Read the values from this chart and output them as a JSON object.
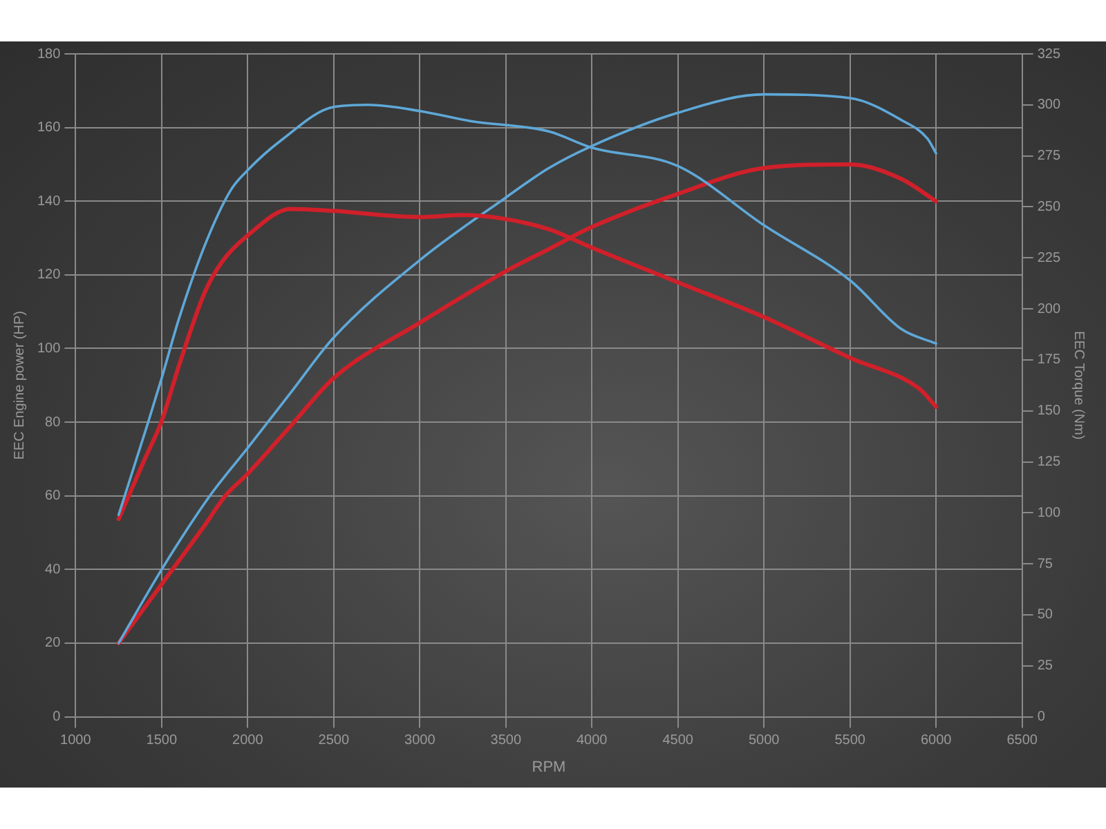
{
  "chart_data": {
    "type": "line",
    "xlabel": "RPM",
    "ylabel": "EEC Engine power (HP)",
    "y2label": "EEC Torque (Nm)",
    "xlim": [
      1000,
      6500
    ],
    "xticks": [
      1000,
      1500,
      2000,
      2500,
      3000,
      3500,
      4000,
      4500,
      5000,
      5500,
      6000,
      6500
    ],
    "ylim": [
      0,
      180
    ],
    "yticks": [
      0,
      20,
      40,
      60,
      80,
      100,
      120,
      140,
      160,
      180
    ],
    "y2lim": [
      0,
      325
    ],
    "y2ticks": [
      0,
      25,
      50,
      75,
      100,
      125,
      150,
      175,
      200,
      225,
      250,
      275,
      300,
      325
    ],
    "grid": true,
    "legend": false,
    "marker": "none",
    "line_style": "solid",
    "series": [
      {
        "color": "#5ea8d8",
        "axis": "y2",
        "x": [
          1250,
          1420,
          1500,
          1600,
          1750,
          1900,
          2000,
          2200,
          2500,
          2700,
          3000,
          3300,
          3750,
          4000,
          4500,
          5000,
          5500,
          5800,
          6000
        ],
        "values": [
          99,
          144,
          166,
          195,
          231,
          258,
          268,
          283,
          299,
          300,
          297,
          292,
          287,
          279,
          270,
          241,
          214,
          190,
          183
        ]
      },
      {
        "color": "#d0202a",
        "axis": "y2",
        "x": [
          1250,
          1400,
          1500,
          1600,
          1750,
          1850,
          2000,
          2250,
          2500,
          3000,
          3250,
          3500,
          3750,
          4000,
          4500,
          5000,
          5500,
          5900,
          6000
        ],
        "values": [
          97,
          126,
          145,
          172,
          208,
          223,
          236,
          249,
          248,
          245,
          246,
          244,
          239,
          230,
          213,
          196,
          176,
          161,
          152
        ]
      },
      {
        "color": "#5ea8d8",
        "x": [
          1250,
          1500,
          1780,
          2000,
          2250,
          2500,
          3000,
          3500,
          3750,
          4000,
          4500,
          5000,
          5500,
          5800,
          5950,
          6000
        ],
        "values": [
          20,
          40,
          60,
          73,
          88,
          103,
          124,
          141,
          149,
          155,
          164,
          169,
          168,
          162,
          157,
          153
        ]
      },
      {
        "color": "#d0202a",
        "x": [
          1250,
          1500,
          1750,
          1870,
          2000,
          2250,
          2500,
          3000,
          3500,
          3750,
          4000,
          4500,
          5000,
          5500,
          5800,
          6000
        ],
        "values": [
          20,
          36,
          52,
          60,
          66,
          79,
          92,
          107,
          121,
          127,
          133,
          142,
          149,
          150,
          146,
          140
        ]
      }
    ]
  }
}
